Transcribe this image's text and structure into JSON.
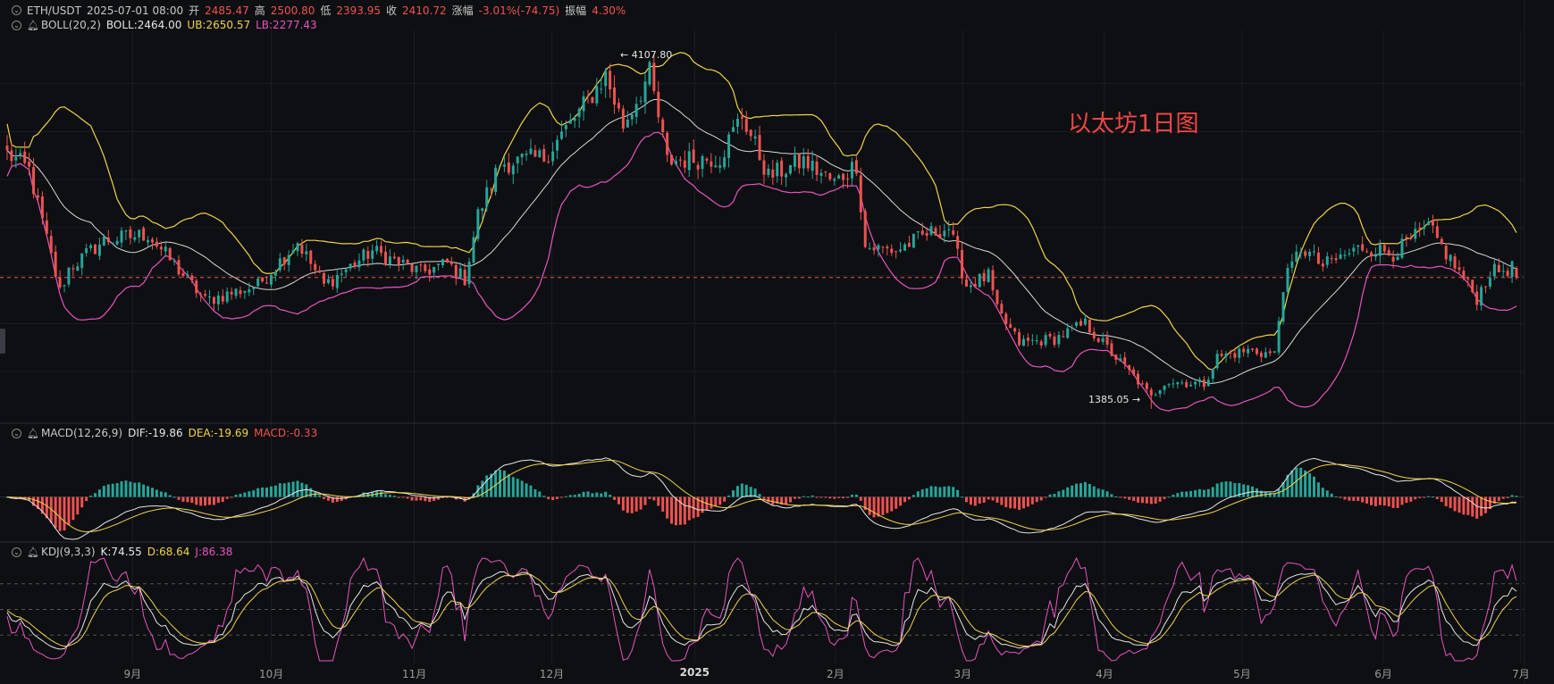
{
  "header": {
    "symbol": "ETH/USDT",
    "datetime": "2025-07-01 08:00",
    "open_label": "开",
    "open": "2485.47",
    "high_label": "高",
    "high": "2500.80",
    "low_label": "低",
    "low": "2393.95",
    "close_label": "收",
    "close": "2410.72",
    "change_label": "涨幅",
    "change": "-3.01%(-74.75)",
    "amp_label": "振幅",
    "amp": "4.30%"
  },
  "boll_legend": {
    "name": "BOLL(20,2)",
    "mid": "BOLL:2464.00",
    "ub": "UB:2650.57",
    "lb": "LB:2277.43"
  },
  "macd_legend": {
    "name": "MACD(12,26,9)",
    "dif": "DIF:-19.86",
    "dea": "DEA:-19.69",
    "macd": "MACD:-0.33"
  },
  "kdj_legend": {
    "name": "KDJ(9,3,3)",
    "k": "K:74.55",
    "d": "D:68.64",
    "j": "J:86.38"
  },
  "title": "以太坊1日图",
  "annotations": {
    "high": "← 4107.80",
    "low": "1385.05 →"
  },
  "x_ticks": [
    {
      "label": "9月",
      "frac": 0.0853
    },
    {
      "label": "10月",
      "frac": 0.1746
    },
    {
      "label": "11月",
      "frac": 0.2666
    },
    {
      "label": "12月",
      "frac": 0.3551
    },
    {
      "label": "2025",
      "frac": 0.447,
      "bold": true
    },
    {
      "label": "2月",
      "frac": 0.5376
    },
    {
      "label": "3月",
      "frac": 0.6195
    },
    {
      "label": "4月",
      "frac": 0.7107
    },
    {
      "label": "5月",
      "frac": 0.7993
    },
    {
      "label": "6月",
      "frac": 0.8902
    },
    {
      "label": "7月",
      "frac": 0.9787
    }
  ],
  "colors": {
    "up": "#26a69a",
    "down": "#ef5350",
    "boll_mid": "#d8d8d8",
    "boll_ub": "#f2d24b",
    "boll_lb": "#e754c2",
    "dif": "#e6e6e6",
    "dea": "#f2d24b",
    "k": "#e6e6e6",
    "d": "#f2d24b",
    "j": "#e754c2",
    "current_price": "#ef5350"
  },
  "chart_data": {
    "type": "candlestick",
    "symbol": "ETH/USDT",
    "interval": "1D",
    "x_range": [
      "2024-07-23",
      "2025-07-01"
    ],
    "y_range": [
      1300,
      4300
    ],
    "current_price": 2410.72,
    "range_high": {
      "date": "2024-12-16",
      "value": 4107.8
    },
    "range_low": {
      "date": "2025-04-09",
      "value": 1385.05
    },
    "price_anchors": [
      [
        "2024-07-23",
        3380
      ],
      [
        "2024-07-28",
        3250
      ],
      [
        "2024-08-04",
        2300
      ],
      [
        "2024-08-06",
        2480
      ],
      [
        "2024-08-14",
        2700
      ],
      [
        "2024-08-24",
        2750
      ],
      [
        "2024-09-06",
        2230
      ],
      [
        "2024-09-18",
        2350
      ],
      [
        "2024-09-27",
        2690
      ],
      [
        "2024-10-03",
        2350
      ],
      [
        "2024-10-14",
        2620
      ],
      [
        "2024-10-25",
        2450
      ],
      [
        "2024-10-31",
        2520
      ],
      [
        "2024-11-04",
        2400
      ],
      [
        "2024-11-07",
        2900
      ],
      [
        "2024-11-12",
        3300
      ],
      [
        "2024-11-22",
        3350
      ],
      [
        "2024-11-30",
        3700
      ],
      [
        "2024-12-06",
        3990
      ],
      [
        "2024-12-10",
        3600
      ],
      [
        "2024-12-16",
        4000
      ],
      [
        "2024-12-20",
        3320
      ],
      [
        "2025-01-01",
        3350
      ],
      [
        "2025-01-06",
        3680
      ],
      [
        "2025-01-12",
        3200
      ],
      [
        "2025-01-20",
        3320
      ],
      [
        "2025-01-27",
        3150
      ],
      [
        "2025-02-01",
        3300
      ],
      [
        "2025-02-03",
        2650
      ],
      [
        "2025-02-10",
        2620
      ],
      [
        "2025-02-17",
        2750
      ],
      [
        "2025-02-22",
        2800
      ],
      [
        "2025-02-26",
        2350
      ],
      [
        "2025-03-03",
        2420
      ],
      [
        "2025-03-05",
        2150
      ],
      [
        "2025-03-10",
        1900
      ],
      [
        "2025-03-18",
        1930
      ],
      [
        "2025-03-25",
        2050
      ],
      [
        "2025-03-31",
        1820
      ],
      [
        "2025-04-06",
        1600
      ],
      [
        "2025-04-09",
        1470
      ],
      [
        "2025-04-12",
        1600
      ],
      [
        "2025-04-21",
        1580
      ],
      [
        "2025-04-24",
        1790
      ],
      [
        "2025-05-01",
        1840
      ],
      [
        "2025-05-07",
        1810
      ],
      [
        "2025-05-09",
        2350
      ],
      [
        "2025-05-13",
        2650
      ],
      [
        "2025-05-18",
        2500
      ],
      [
        "2025-05-27",
        2650
      ],
      [
        "2025-06-03",
        2600
      ],
      [
        "2025-06-09",
        2750
      ],
      [
        "2025-06-11",
        2800
      ],
      [
        "2025-06-16",
        2550
      ],
      [
        "2025-06-22",
        2250
      ],
      [
        "2025-06-25",
        2450
      ],
      [
        "2025-06-30",
        2485
      ],
      [
        "2025-07-01",
        2410
      ]
    ]
  }
}
